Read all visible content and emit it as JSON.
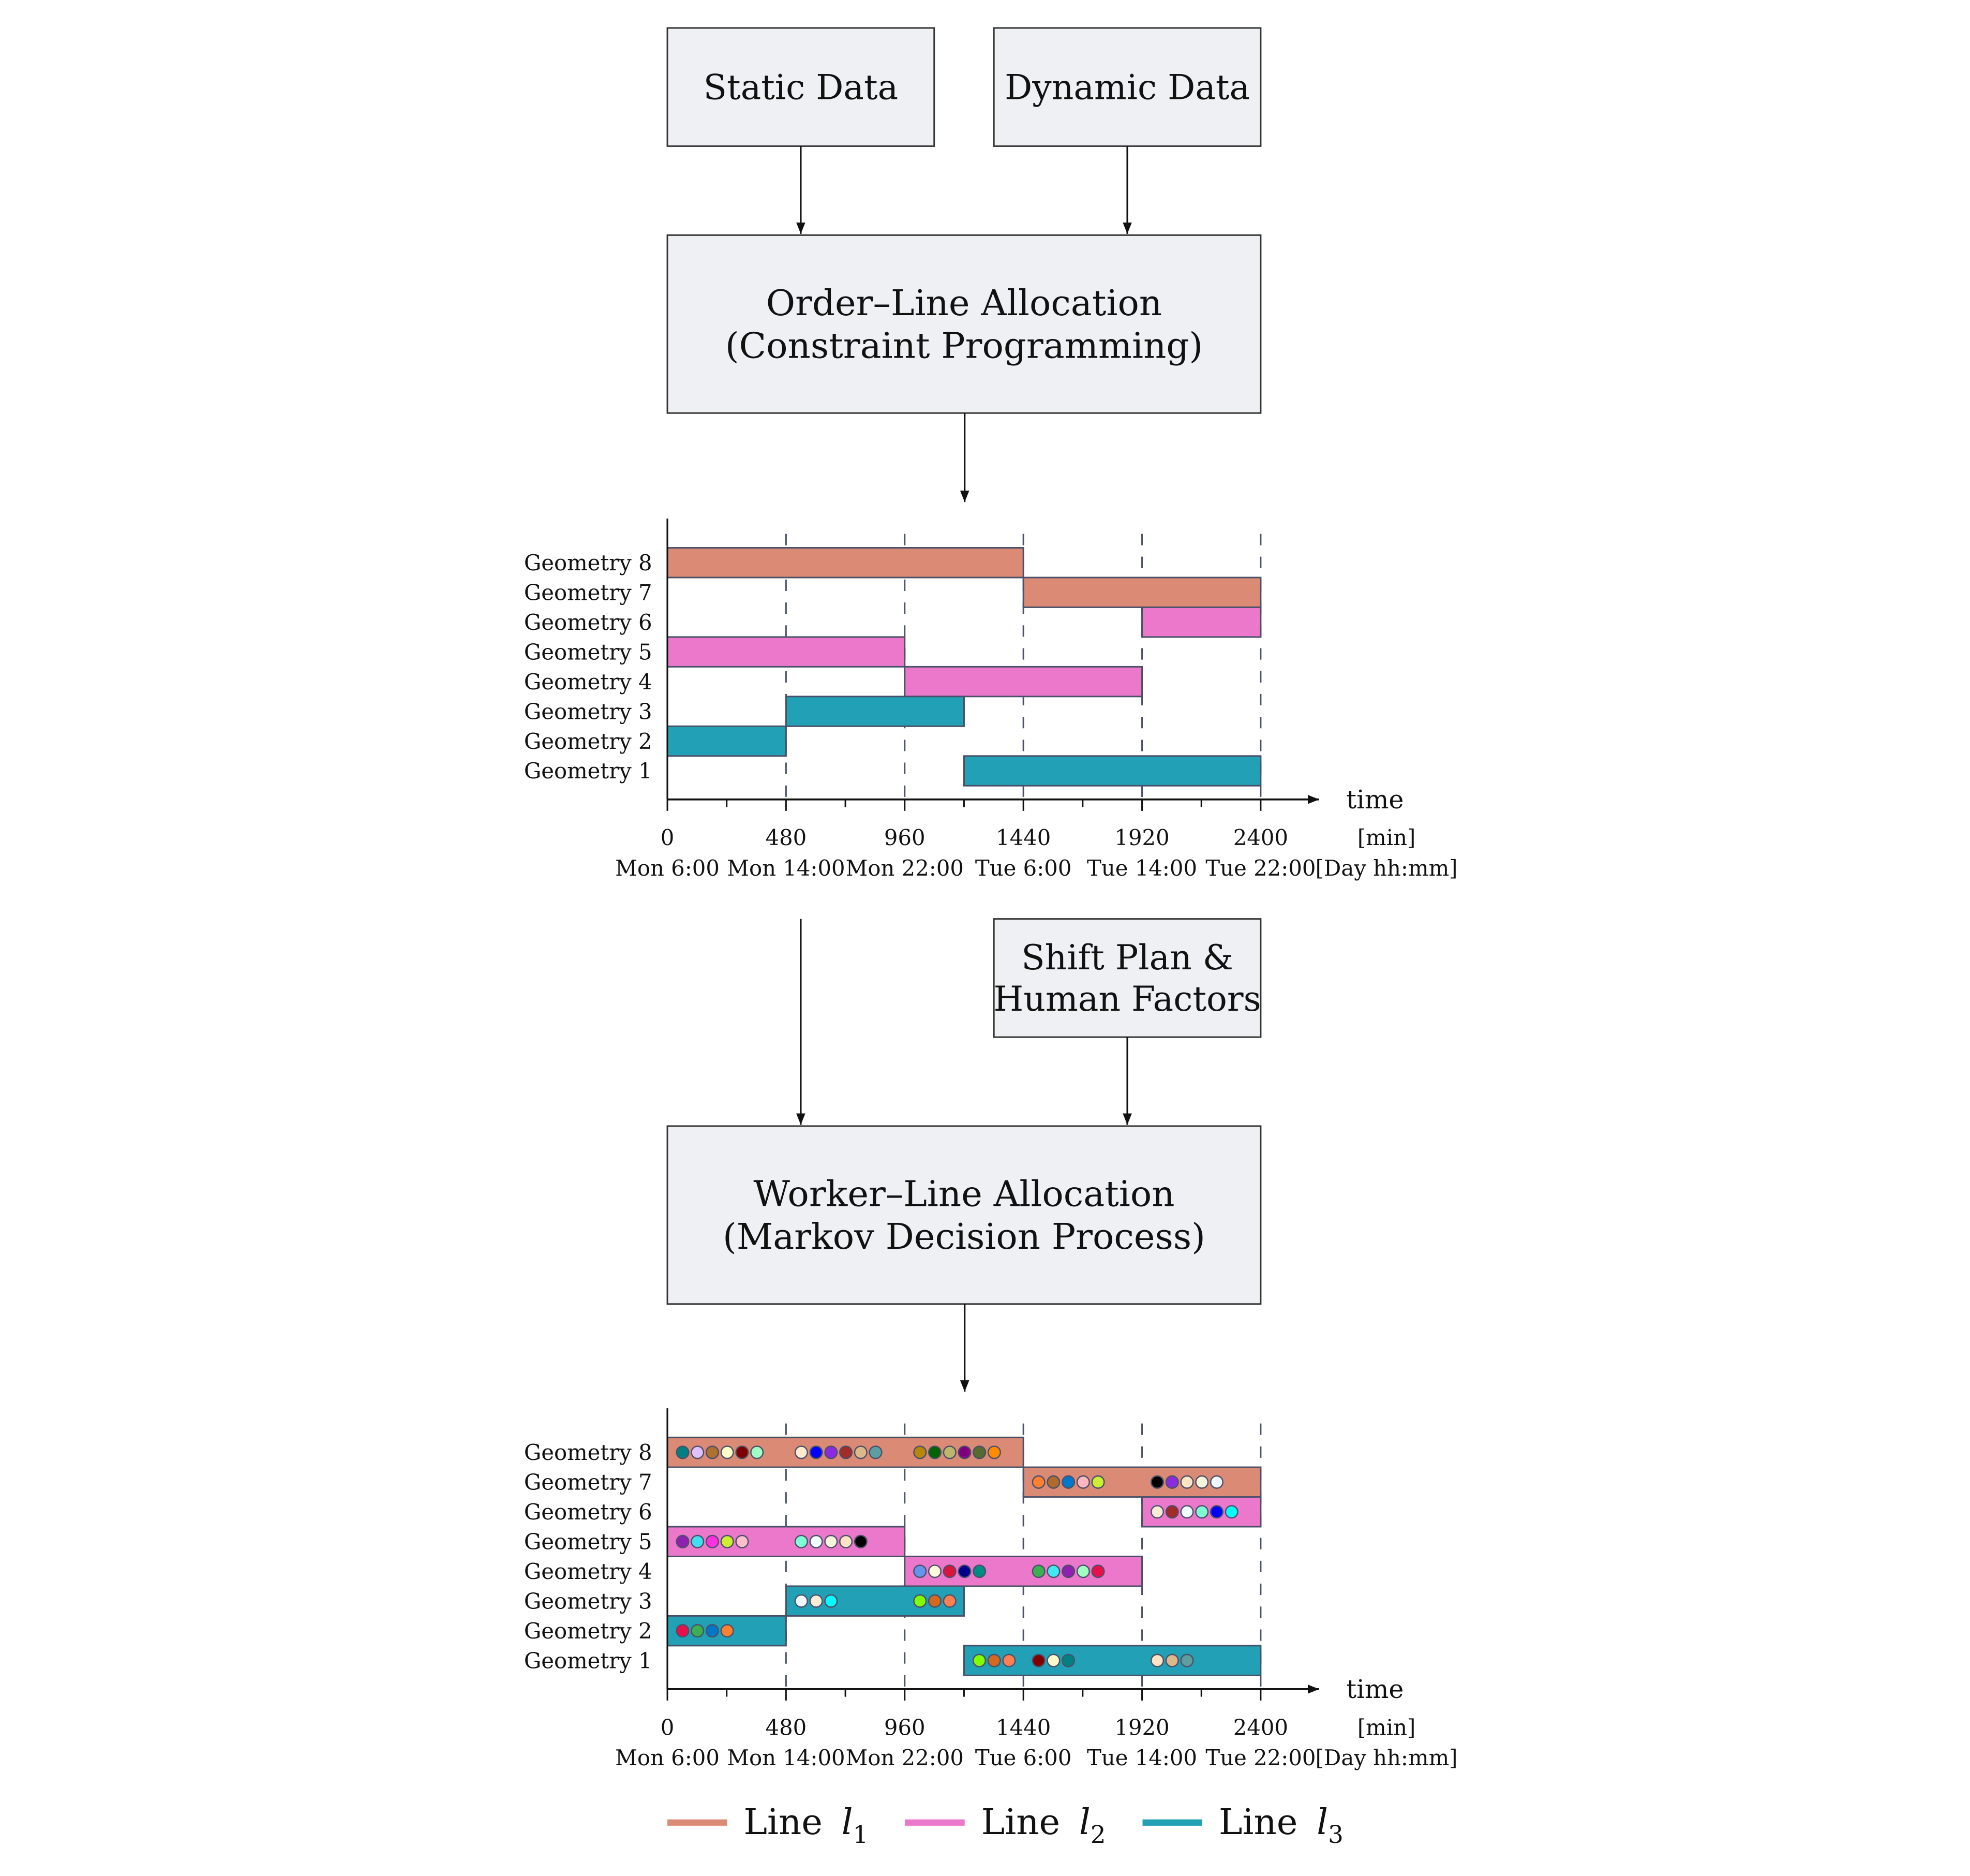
{
  "colors": {
    "box_fill": "#EFF0F4",
    "box_stroke": "#333333",
    "l1": "#DB8A76",
    "l2": "#EB78CB",
    "l3": "#21A0B6",
    "grid": "#4A5068"
  },
  "boxes": {
    "static": {
      "lines": [
        "Static Data"
      ]
    },
    "dynamic": {
      "lines": [
        "Dynamic Data"
      ]
    },
    "order": {
      "lines": [
        "Order–Line Allocation",
        "(Constraint Programming)"
      ]
    },
    "shift": {
      "lines": [
        "Shift Plan &",
        "Human Factors"
      ]
    },
    "worker": {
      "lines": [
        "Worker–Line Allocation",
        "(Markov Decision Process)"
      ]
    }
  },
  "gantt": {
    "rows": [
      "Geometry 8",
      "Geometry 7",
      "Geometry 6",
      "Geometry 5",
      "Geometry 4",
      "Geometry 3",
      "Geometry 2",
      "Geometry 1"
    ],
    "xmax": 2400,
    "major_ticks": [
      0,
      480,
      960,
      1440,
      1920,
      2400
    ],
    "minor_ticks": [
      240,
      720,
      1200,
      1680,
      2160
    ],
    "tick_labels": [
      "0",
      "480",
      "960",
      "1440",
      "1920",
      "2400"
    ],
    "day_labels": [
      "Mon 6:00",
      "Mon 14:00",
      "Mon 22:00",
      "Tue 6:00",
      "Tue 14:00",
      "Tue 22:00"
    ],
    "axis_label": "time",
    "unit_min": "[min]",
    "unit_day": "[Day hh:mm]",
    "bars": [
      {
        "row": "Geometry 8",
        "line": "l1",
        "start": 0,
        "end": 1440
      },
      {
        "row": "Geometry 7",
        "line": "l1",
        "start": 1440,
        "end": 2400
      },
      {
        "row": "Geometry 6",
        "line": "l2",
        "start": 1920,
        "end": 2400
      },
      {
        "row": "Geometry 5",
        "line": "l2",
        "start": 0,
        "end": 960
      },
      {
        "row": "Geometry 4",
        "line": "l2",
        "start": 960,
        "end": 1920
      },
      {
        "row": "Geometry 3",
        "line": "l3",
        "start": 480,
        "end": 1200
      },
      {
        "row": "Geometry 2",
        "line": "l3",
        "start": 0,
        "end": 480
      },
      {
        "row": "Geometry 1",
        "line": "l3",
        "start": 1200,
        "end": 2400
      }
    ],
    "worker_groups": [
      {
        "row": "Geometry 8",
        "start": 0,
        "workers": [
          "#008080",
          "#E0C0FF",
          "#B07030",
          "#FFFFC8",
          "#800000",
          "#A0FFC8"
        ]
      },
      {
        "row": "Geometry 8",
        "start": 480,
        "workers": [
          "#FFEBCD",
          "#0000FF",
          "#8A2BE2",
          "#A52A2A",
          "#DEB887",
          "#5F9EA0"
        ]
      },
      {
        "row": "Geometry 8",
        "start": 960,
        "workers": [
          "#B8860B",
          "#006400",
          "#BDB76B",
          "#800080",
          "#556B2F",
          "#FF8C00"
        ]
      },
      {
        "row": "Geometry 7",
        "start": 1440,
        "workers": [
          "#FF8030",
          "#B06A2A",
          "#0077C8",
          "#FFB6C1",
          "#CCEE33"
        ]
      },
      {
        "row": "Geometry 7",
        "start": 1920,
        "workers": [
          "#000000",
          "#8A2BE2",
          "#FFE4C4",
          "#F5F5DC",
          "#F0F8FF"
        ]
      },
      {
        "row": "Geometry 6",
        "start": 1920,
        "workers": [
          "#FAEBD7",
          "#A52A2A",
          "#F0FFFF",
          "#7FFFD4",
          "#0000FF",
          "#00FFFF"
        ]
      },
      {
        "row": "Geometry 5",
        "start": 0,
        "workers": [
          "#9020B0",
          "#40E0F0",
          "#FF30E0",
          "#CCEE33",
          "#FFC0CB"
        ]
      },
      {
        "row": "Geometry 5",
        "start": 480,
        "workers": [
          "#7FFFD4",
          "#F0FFFF",
          "#F5F5DC",
          "#FFE4C4",
          "#000000"
        ]
      },
      {
        "row": "Geometry 4",
        "start": 960,
        "workers": [
          "#6495ED",
          "#FFF8DC",
          "#DC143C",
          "#00008B",
          "#008B80"
        ]
      },
      {
        "row": "Geometry 4",
        "start": 1440,
        "workers": [
          "#3CB050",
          "#40E8F0",
          "#9020B0",
          "#A0FFC0",
          "#E8104A"
        ]
      },
      {
        "row": "Geometry 3",
        "start": 480,
        "workers": [
          "#F0F8FF",
          "#FAEBD7",
          "#00FFFF"
        ]
      },
      {
        "row": "Geometry 3",
        "start": 960,
        "workers": [
          "#80FF00",
          "#D2691E",
          "#FF7F50"
        ]
      },
      {
        "row": "Geometry 2",
        "start": 0,
        "workers": [
          "#E8104A",
          "#3CB050",
          "#0077C8",
          "#FF8030"
        ]
      },
      {
        "row": "Geometry 1",
        "start": 1200,
        "workers": [
          "#80FF00",
          "#D2691E",
          "#FF7F50"
        ]
      },
      {
        "row": "Geometry 1",
        "start": 1440,
        "workers": [
          "#800000",
          "#FFFACD",
          "#008080"
        ]
      },
      {
        "row": "Geometry 1",
        "start": 1920,
        "workers": [
          "#FFE4C4",
          "#DEB887",
          "#5F9EA0"
        ]
      }
    ]
  },
  "legend": [
    {
      "key": "l1",
      "prefix": "Line ",
      "var": "l",
      "sub": "1"
    },
    {
      "key": "l2",
      "prefix": "Line ",
      "var": "l",
      "sub": "2"
    },
    {
      "key": "l3",
      "prefix": "Line ",
      "var": "l",
      "sub": "3"
    }
  ]
}
